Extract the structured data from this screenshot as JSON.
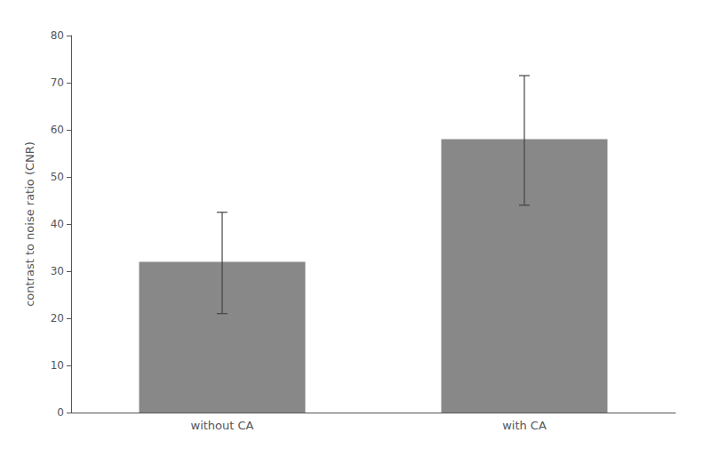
{
  "chart_data": {
    "type": "bar",
    "categories": [
      "without CA",
      "with CA"
    ],
    "values": [
      32.0,
      58.0
    ],
    "errors_upper": [
      10.5,
      13.5
    ],
    "errors_lower": [
      11.0,
      14.0
    ],
    "color": "#888888",
    "ylabel": "contrast to noise ratio (CNR)",
    "ylim": [
      0,
      80
    ],
    "yticks": [
      0,
      10,
      20,
      30,
      40,
      50,
      60,
      70,
      80
    ],
    "grid": false
  }
}
